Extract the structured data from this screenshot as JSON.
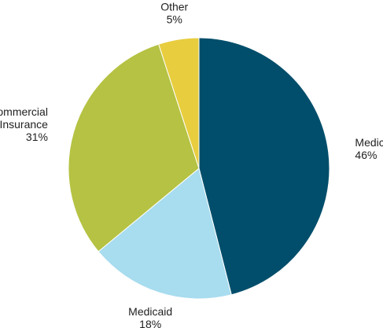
{
  "chart_data": {
    "type": "pie",
    "title": "",
    "start_angle_deg": 0,
    "direction": "clockwise",
    "slices": [
      {
        "name_lines": [
          "Medicare"
        ],
        "value": 46,
        "value_label": "46%",
        "color": "#004e6b"
      },
      {
        "name_lines": [
          "Medicaid"
        ],
        "value": 18,
        "value_label": "18%",
        "color": "#a8dcef"
      },
      {
        "name_lines": [
          "Commercial",
          "Insurance"
        ],
        "value": 31,
        "value_label": "31%",
        "color": "#b5c243"
      },
      {
        "name_lines": [
          "Other"
        ],
        "value": 5,
        "value_label": "5%",
        "color": "#e8cd3f"
      }
    ]
  }
}
